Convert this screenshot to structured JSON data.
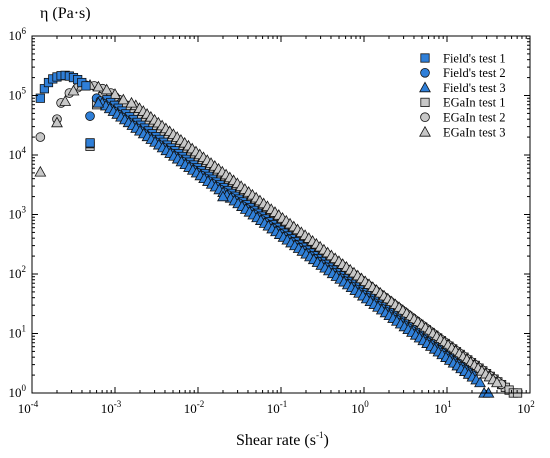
{
  "chart_data": {
    "type": "scatter",
    "title": "",
    "xlabel": "Shear rate (s",
    "xlabel_sup": "-1",
    "xlabel_end": ")",
    "ylabel": "η (Pa·s)",
    "x_scale": "log",
    "y_scale": "log",
    "xlim": [
      0.0001,
      100
    ],
    "ylim": [
      1,
      1000000
    ],
    "x_ticks": [
      {
        "base": "10",
        "exp": "-4"
      },
      {
        "base": "10",
        "exp": "-3"
      },
      {
        "base": "10",
        "exp": "-2"
      },
      {
        "base": "10",
        "exp": "-1"
      },
      {
        "base": "10",
        "exp": "0"
      },
      {
        "base": "10",
        "exp": "1"
      },
      {
        "base": "10",
        "exp": "2"
      }
    ],
    "y_ticks": [
      {
        "base": "10",
        "exp": "0"
      },
      {
        "base": "10",
        "exp": "1"
      },
      {
        "base": "10",
        "exp": "2"
      },
      {
        "base": "10",
        "exp": "3"
      },
      {
        "base": "10",
        "exp": "4"
      },
      {
        "base": "10",
        "exp": "5"
      },
      {
        "base": "10",
        "exp": "6"
      }
    ],
    "grid": false,
    "legend_position": "top-right",
    "series": [
      {
        "name": "Field's test 1",
        "marker": "square",
        "color": "#2f7fd8",
        "points": [
          [
            0.000126,
            90000
          ],
          [
            0.000141,
            130000
          ],
          [
            0.000158,
            165000
          ],
          [
            0.000178,
            190000
          ],
          [
            0.0002,
            205000
          ],
          [
            0.000224,
            215000
          ],
          [
            0.000251,
            218000
          ],
          [
            0.000282,
            212000
          ],
          [
            0.000316,
            200000
          ],
          [
            0.000355,
            185000
          ],
          [
            0.000398,
            165000
          ],
          [
            0.000447,
            145000
          ],
          [
            0.000501,
            16000
          ]
        ],
        "line": {
          "x0": 0.0008,
          "y0": 85000,
          "x1": 20,
          "y1": 2.0
        }
      },
      {
        "name": "Field's test 2",
        "marker": "circle",
        "color": "#2f7fd8",
        "points": [
          [
            0.0005,
            45000
          ]
        ],
        "line": {
          "x0": 0.0006,
          "y0": 90000,
          "x1": 20,
          "y1": 2.0
        }
      },
      {
        "name": "Field's test 3",
        "marker": "triangle",
        "color": "#2f7fd8",
        "points": [
          [
            0.00063,
            75000
          ],
          [
            0.02,
            2000
          ],
          [
            28,
            1.0
          ],
          [
            31.6,
            1.0
          ]
        ],
        "line": {
          "x0": 0.0007,
          "y0": 75000,
          "x1": 25,
          "y1": 1.5
        }
      },
      {
        "name": "EGaIn test 1",
        "marker": "square",
        "color": "#c8c8c8",
        "points": [
          [
            0.0005,
            14000
          ],
          [
            0.0005,
            15500
          ],
          [
            0.0006,
            70000
          ],
          [
            0.000708,
            95000
          ],
          [
            63,
            1.0
          ],
          [
            70.8,
            1.0
          ]
        ],
        "line": {
          "x0": 0.0008,
          "y0": 95000,
          "x1": 56,
          "y1": 1.12
        }
      },
      {
        "name": "EGaIn test 2",
        "marker": "circle",
        "color": "#c8c8c8",
        "points": [
          [
            0.000126,
            20000
          ],
          [
            0.0002,
            40000
          ],
          [
            0.000224,
            75000
          ],
          [
            0.000282,
            110000
          ],
          [
            0.000355,
            135000
          ],
          [
            0.000447,
            148000
          ],
          [
            0.000562,
            145000
          ],
          [
            0.000708,
            130000
          ],
          [
            0.000891,
            110000
          ],
          [
            0.001,
            95000
          ]
        ],
        "line": {
          "x0": 0.00112,
          "y0": 85000,
          "x1": 45,
          "y1": 1.4
        }
      },
      {
        "name": "EGaIn test 3",
        "marker": "triangle",
        "color": "#c8c8c8",
        "points": [
          [
            0.000126,
            5200
          ],
          [
            0.0002,
            35000
          ],
          [
            0.000251,
            80000
          ],
          [
            0.000316,
            120000
          ],
          [
            0.000398,
            145000
          ],
          [
            0.0005,
            150000
          ],
          [
            0.000631,
            140000
          ],
          [
            0.000794,
            125000
          ],
          [
            0.001,
            105000
          ],
          [
            0.00126,
            85000
          ],
          [
            0.00158,
            75000
          ]
        ],
        "line": {
          "x0": 0.00178,
          "y0": 68000,
          "x1": 40,
          "y1": 1.5
        }
      }
    ]
  }
}
